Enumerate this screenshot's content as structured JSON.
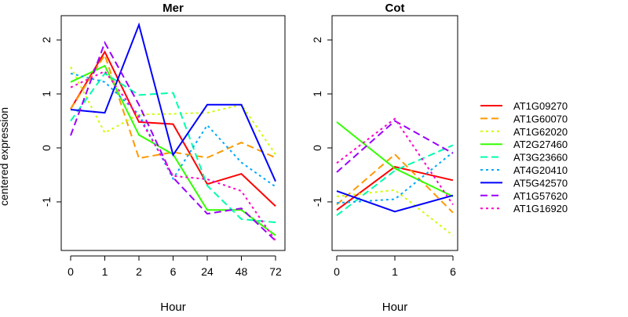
{
  "chart_data": {
    "type": "line",
    "ylabel": "centered expression",
    "xlabel": "Hour",
    "ylim": [
      -1.9,
      2.45
    ],
    "yticks": [
      -1,
      0,
      1,
      2
    ],
    "ytick_labels": [
      "-1",
      "0",
      "1",
      "2"
    ],
    "grid": false,
    "legend_position": "right",
    "series_styles": [
      {
        "name": "AT1G09270",
        "color": "#ff0000",
        "dash": "solid"
      },
      {
        "name": "AT1G60070",
        "color": "#ff9900",
        "dash": "dashed"
      },
      {
        "name": "AT1G62020",
        "color": "#ccff00",
        "dash": "dotted"
      },
      {
        "name": "AT2G27460",
        "color": "#33ff00",
        "dash": "solid"
      },
      {
        "name": "AT3G23660",
        "color": "#00ffaa",
        "dash": "dashed"
      },
      {
        "name": "AT4G20410",
        "color": "#00aaff",
        "dash": "dotted"
      },
      {
        "name": "AT5G42570",
        "color": "#0000ff",
        "dash": "solid"
      },
      {
        "name": "AT1G57620",
        "color": "#9900ff",
        "dash": "dashed"
      },
      {
        "name": "AT1G16920",
        "color": "#ff00cc",
        "dash": "dotted"
      }
    ],
    "panels": [
      {
        "title": "Mer",
        "categories": [
          "0",
          "1",
          "2",
          "6",
          "24",
          "48",
          "72"
        ],
        "series": [
          {
            "name": "AT1G09270",
            "values": [
              0.72,
              1.78,
              0.48,
              0.44,
              -0.67,
              -0.48,
              -1.08
            ]
          },
          {
            "name": "AT1G60070",
            "values": [
              0.72,
              1.72,
              -0.19,
              -0.08,
              -0.18,
              0.1,
              -0.18
            ]
          },
          {
            "name": "AT1G62020",
            "values": [
              1.5,
              0.28,
              0.62,
              0.63,
              0.65,
              0.8,
              -0.12
            ]
          },
          {
            "name": "AT2G27460",
            "values": [
              1.22,
              1.52,
              0.24,
              -0.12,
              -1.15,
              -1.15,
              -1.62
            ]
          },
          {
            "name": "AT3G23660",
            "values": [
              0.5,
              1.38,
              0.98,
              1.02,
              -0.7,
              -1.32,
              -1.38
            ]
          },
          {
            "name": "AT4G20410",
            "values": [
              1.38,
              1.22,
              0.62,
              -0.57,
              0.42,
              -0.27,
              -0.72
            ]
          },
          {
            "name": "AT5G42570",
            "values": [
              0.71,
              0.65,
              2.28,
              -0.13,
              0.8,
              0.8,
              -0.62
            ]
          },
          {
            "name": "AT1G57620",
            "values": [
              0.23,
              1.95,
              0.8,
              -0.55,
              -1.22,
              -1.12,
              -1.72
            ]
          },
          {
            "name": "AT1G16920",
            "values": [
              1.12,
              1.42,
              0.57,
              -0.52,
              -0.58,
              -0.8,
              -1.72
            ]
          }
        ]
      },
      {
        "title": "Cot",
        "categories": [
          "0",
          "1",
          "6"
        ],
        "series": [
          {
            "name": "AT1G09270",
            "values": [
              -1.15,
              -0.35,
              -0.6
            ]
          },
          {
            "name": "AT1G60070",
            "values": [
              -1.05,
              -0.12,
              -1.2
            ]
          },
          {
            "name": "AT1G62020",
            "values": [
              -0.9,
              -0.78,
              -1.62
            ]
          },
          {
            "name": "AT2G27460",
            "values": [
              0.48,
              -0.38,
              -0.9
            ]
          },
          {
            "name": "AT3G23660",
            "values": [
              -1.25,
              -0.42,
              0.05
            ]
          },
          {
            "name": "AT4G20410",
            "values": [
              -1.02,
              -0.95,
              -0.08
            ]
          },
          {
            "name": "AT5G42570",
            "values": [
              -0.8,
              -1.18,
              -0.88
            ]
          },
          {
            "name": "AT1G57620",
            "values": [
              -0.45,
              0.5,
              -0.1
            ]
          },
          {
            "name": "AT1G16920",
            "values": [
              -0.28,
              0.54,
              -1.05
            ]
          }
        ]
      }
    ]
  }
}
